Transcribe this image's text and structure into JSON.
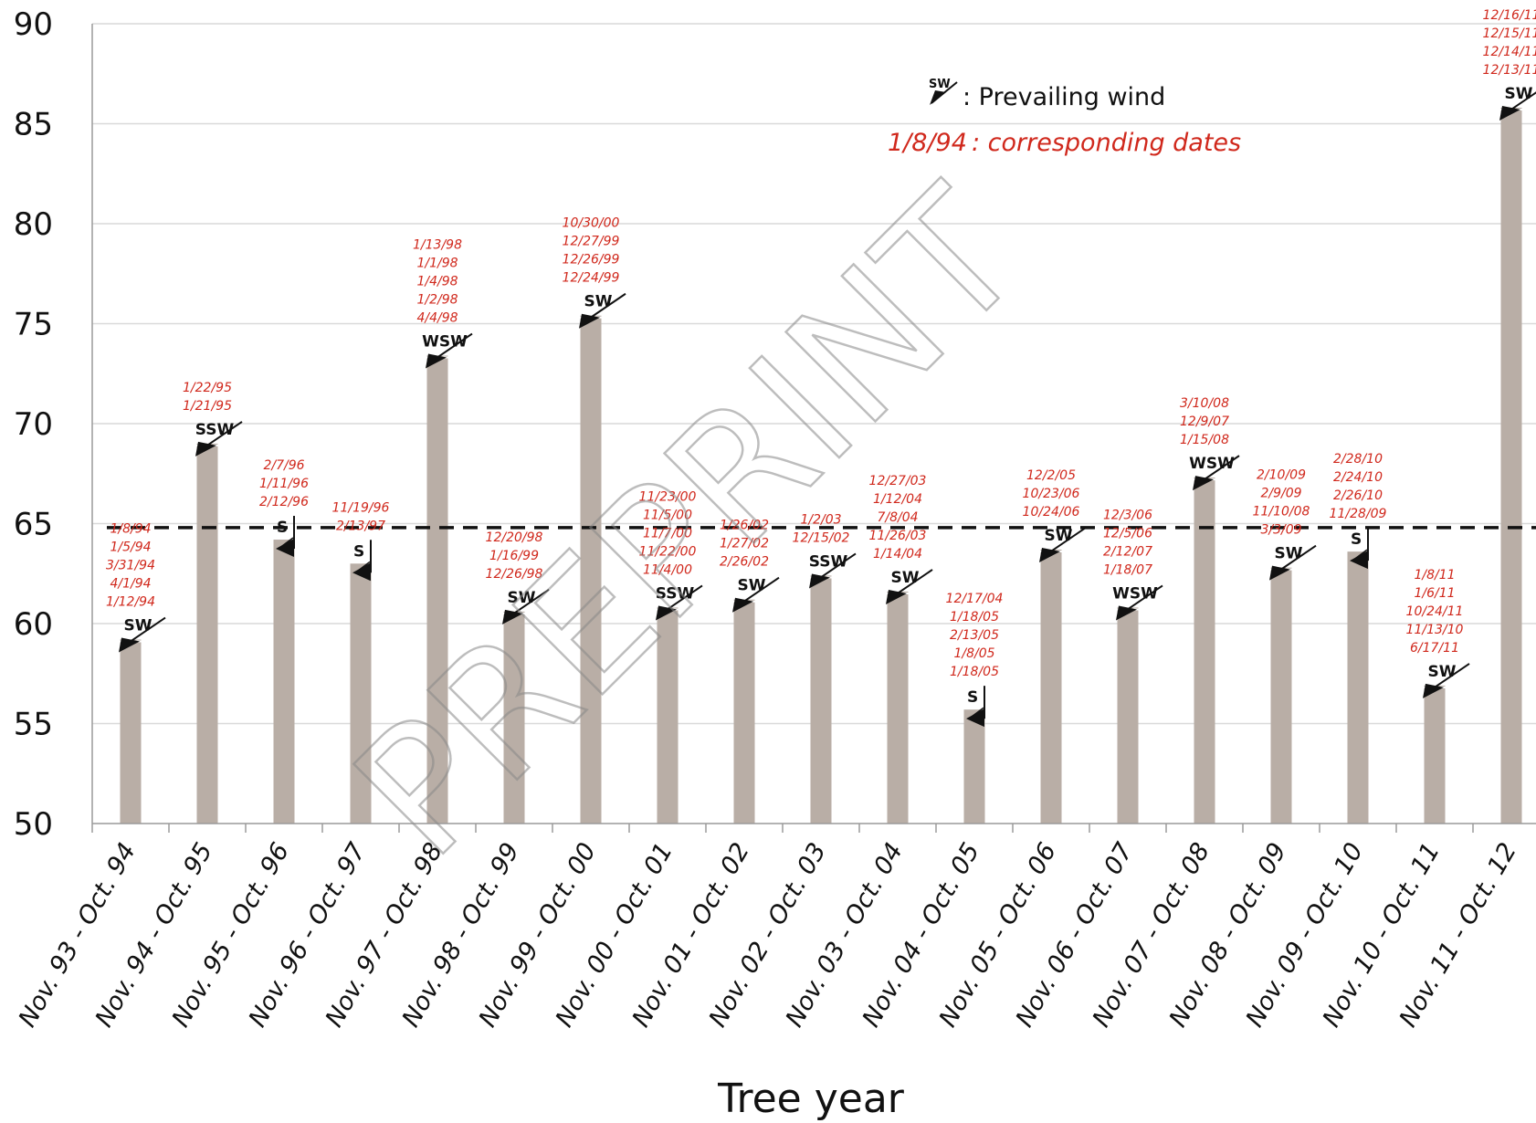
{
  "chart_data": {
    "type": "bar",
    "xlabel": "Tree year",
    "ylim": [
      50,
      90
    ],
    "yticks": [
      50,
      55,
      60,
      65,
      70,
      75,
      80,
      85,
      90
    ],
    "threshold": 64.8,
    "grid": true,
    "categories": [
      "Nov. 93 - Oct. 94",
      "Nov. 94 - Oct. 95",
      "Nov. 95 - Oct. 96",
      "Nov. 96 - Oct. 97",
      "Nov. 97 - Oct. 98",
      "Nov. 98 - Oct. 99",
      "Nov. 99 - Oct. 00",
      "Nov. 00 - Oct. 01",
      "Nov. 01 - Oct. 02",
      "Nov. 02 - Oct. 03",
      "Nov. 03 - Oct. 04",
      "Nov. 04 - Oct. 05",
      "Nov. 05 - Oct. 06",
      "Nov. 06 - Oct. 07",
      "Nov. 07 - Oct. 08",
      "Nov. 08 - Oct. 09",
      "Nov. 09 - Oct. 10",
      "Nov. 10 - Oct. 11",
      "Nov. 11 - Oct. 12"
    ],
    "values": [
      59.2,
      69.0,
      64.2,
      63.0,
      73.4,
      60.6,
      75.4,
      60.8,
      61.2,
      62.4,
      61.6,
      55.7,
      63.7,
      60.8,
      67.3,
      62.8,
      63.6,
      56.9,
      85.8
    ],
    "winds": [
      "SW",
      "SSW",
      "S",
      "S",
      "WSW",
      "SW",
      "SW",
      "SSW",
      "SW",
      "SSW",
      "SW",
      "S",
      "SW",
      "WSW",
      "WSW",
      "SW",
      "S",
      "SW",
      "SW"
    ],
    "dates": [
      [
        "1/8/94",
        "1/5/94",
        "3/31/94",
        "4/1/94",
        "1/12/94"
      ],
      [
        "1/22/95",
        "1/21/95"
      ],
      [
        "2/7/96",
        "1/11/96",
        "2/12/96"
      ],
      [
        "11/19/96",
        "2/13/97"
      ],
      [
        "1/13/98",
        "1/1/98",
        "1/4/98",
        "1/2/98",
        "4/4/98"
      ],
      [
        "12/20/98",
        "1/16/99",
        "12/26/98"
      ],
      [
        "10/30/00",
        "12/27/99",
        "12/26/99",
        "12/24/99"
      ],
      [
        "11/23/00",
        "11/5/00",
        "11/7/00",
        "11/22/00",
        "11/4/00"
      ],
      [
        "1/26/02",
        "1/27/02",
        "2/26/02"
      ],
      [
        "1/2/03",
        "12/15/02"
      ],
      [
        "12/27/03",
        "1/12/04",
        "7/8/04",
        "11/26/03",
        "1/14/04"
      ],
      [
        "12/17/04",
        "1/18/05",
        "2/13/05",
        "1/8/05",
        "1/18/05"
      ],
      [
        "12/2/05",
        "10/23/06",
        "10/24/06"
      ],
      [
        "12/3/06",
        "12/5/06",
        "2/12/07",
        "1/18/07"
      ],
      [
        "3/10/08",
        "12/9/07",
        "1/15/08"
      ],
      [
        "2/10/09",
        "2/9/09",
        "11/10/08",
        "3/3/09"
      ],
      [
        "2/28/10",
        "2/24/10",
        "2/26/10",
        "11/28/09"
      ],
      [
        "1/8/11",
        "1/6/11",
        "10/24/11",
        "11/13/10",
        "6/17/11"
      ],
      [
        "12/16/11",
        "12/15/11",
        "12/14/11",
        "12/13/11"
      ]
    ],
    "colors": {
      "bar": "#b9aea6",
      "dates": "#d0281c",
      "grid": "#d9d9d9",
      "threshold": "#111111"
    },
    "legend": {
      "placement": "top-right",
      "wind_icon_label": "SW",
      "wind_text": ": Prevailing wind",
      "date_sample": "1/8/94",
      "date_text": ": corresponding dates"
    },
    "watermark": "PREPRINT"
  }
}
